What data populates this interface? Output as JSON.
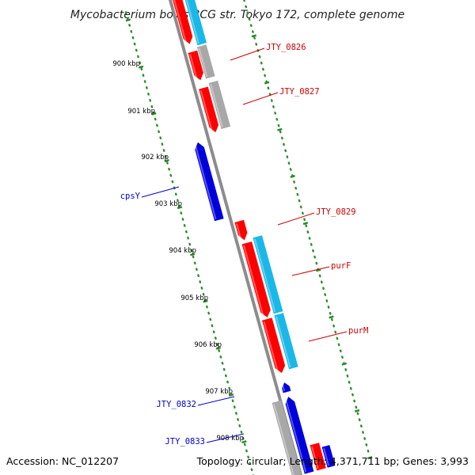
{
  "title": "Mycobacterium bovis BCG str. Tokyo 172, complete genome",
  "footer": {
    "accession": "Accession: NC_012207",
    "summary": "Topology: circular; Length: 4,371,711 bp; Genes: 3,993"
  },
  "colors": {
    "backbone": "#8c8c8c",
    "tick": "#2e8b2e",
    "cds_red": "#ff0000",
    "cds_blue": "#0000dd",
    "rna_cyan": "#1ab8e8",
    "gray_feature": "#a8a8a8",
    "label_red": "#cc0000",
    "label_blue": "#0000cc"
  },
  "ticks": [
    "900 kbp",
    "901 kbp",
    "902 kbp",
    "903 kbp",
    "904 kbp",
    "905 kbp",
    "906 kbp",
    "907 kbp",
    "908 kbp"
  ],
  "gene_labels": [
    {
      "text": "JTY_0826",
      "color": "red"
    },
    {
      "text": "JTY_0827",
      "color": "red"
    },
    {
      "text": "cpsY",
      "color": "blue"
    },
    {
      "text": "JTY_0829",
      "color": "red"
    },
    {
      "text": "purF",
      "color": "red"
    },
    {
      "text": "purM",
      "color": "red"
    },
    {
      "text": "JTY_0832",
      "color": "blue"
    },
    {
      "text": "JTY_0833",
      "color": "blue"
    }
  ]
}
